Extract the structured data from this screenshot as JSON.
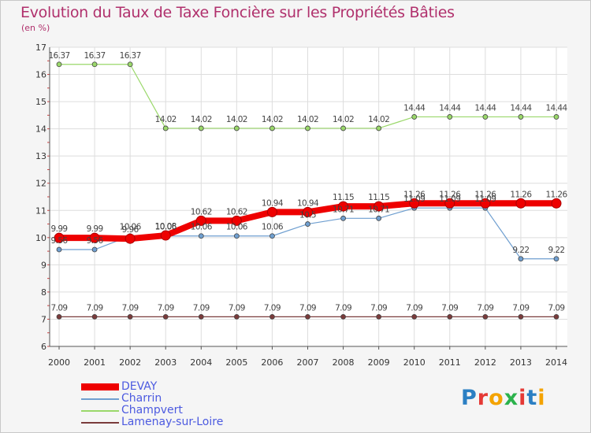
{
  "title": "Evolution du Taux de Taxe Foncière sur les Propriétés Bâties",
  "subtitle": "(en %)",
  "logo": {
    "letters": [
      "P",
      "r",
      "o",
      "x",
      "i",
      "t",
      "i"
    ],
    "colors": [
      "#2b7fc3",
      "#e53935",
      "#f4a300",
      "#2bb24c",
      "#e53935",
      "#2b7fc3",
      "#f4a300"
    ]
  },
  "chart_data": {
    "type": "line",
    "title": "Evolution du Taux de Taxe Foncière sur les Propriétés Bâties",
    "ylabel": "(en %)",
    "ylim": [
      6,
      17
    ],
    "yticks": [
      6,
      7,
      8,
      9,
      10,
      11,
      12,
      13,
      14,
      15,
      16,
      17
    ],
    "x": [
      "2000",
      "2001",
      "2002",
      "2003",
      "2004",
      "2005",
      "2006",
      "2007",
      "2008",
      "2009",
      "2010",
      "2011",
      "2012",
      "2013",
      "2014"
    ],
    "grid": true,
    "legend_position": "bottom-left",
    "series": [
      {
        "name": "DEVAY",
        "color": "#ee0000",
        "values": [
          9.99,
          9.99,
          9.96,
          10.08,
          10.62,
          10.62,
          10.94,
          10.94,
          11.15,
          11.15,
          11.26,
          11.26,
          11.26,
          11.26,
          11.26
        ],
        "labels": [
          "9.99",
          "9.99",
          "9.96",
          "10.08",
          "10.62",
          "10.62",
          "10.94",
          "10.94",
          "11.15",
          "11.15",
          "11.26",
          "11.26",
          "11.26",
          "11.26",
          "11.26"
        ]
      },
      {
        "name": "Charrin",
        "color": "#6f9fd0",
        "values": [
          9.56,
          9.56,
          10.06,
          10.06,
          10.06,
          10.06,
          10.06,
          10.5,
          10.71,
          10.71,
          11.09,
          11.09,
          11.09,
          9.22,
          9.22
        ],
        "labels": [
          "9.56",
          "9.56",
          "10.06",
          "10.06",
          "10.06",
          "10.06",
          "10.06",
          "10.5",
          "10.71",
          "10.71",
          "11.09",
          "11.09",
          "11.09",
          "9.22",
          "9.22"
        ]
      },
      {
        "name": "Champvert",
        "color": "#9ad86a",
        "values": [
          16.37,
          16.37,
          16.37,
          14.02,
          14.02,
          14.02,
          14.02,
          14.02,
          14.02,
          14.02,
          14.44,
          14.44,
          14.44,
          14.44,
          14.44
        ],
        "labels": [
          "16.37",
          "16.37",
          "16.37",
          "14.02",
          "14.02",
          "14.02",
          "14.02",
          "14.02",
          "14.02",
          "14.02",
          "14.44",
          "14.44",
          "14.44",
          "14.44",
          "14.44"
        ]
      },
      {
        "name": "Lamenay-sur-Loire",
        "color": "#7a3b3b",
        "values": [
          7.09,
          7.09,
          7.09,
          7.09,
          7.09,
          7.09,
          7.09,
          7.09,
          7.09,
          7.09,
          7.09,
          7.09,
          7.09,
          7.09,
          7.09
        ],
        "labels": [
          "7.09",
          "7.09",
          "7.09",
          "7.09",
          "7.09",
          "7.09",
          "7.09",
          "7.09",
          "7.09",
          "7.09",
          "7.09",
          "7.09",
          "7.09",
          "7.09",
          "7.09"
        ]
      }
    ]
  }
}
